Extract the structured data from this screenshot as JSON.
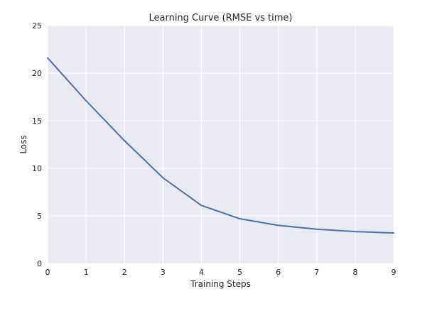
{
  "chart_data": {
    "type": "line",
    "title": "Learning Curve (RMSE vs time)",
    "xlabel": "Training Steps",
    "ylabel": "Loss",
    "x": [
      0,
      1,
      2,
      3,
      4,
      5,
      6,
      7,
      8,
      9
    ],
    "series": [
      {
        "values": [
          21.6,
          17.1,
          12.9,
          9.0,
          6.1,
          4.7,
          4.0,
          3.6,
          3.35,
          3.2
        ]
      }
    ],
    "xlim": [
      0,
      9
    ],
    "ylim": [
      0,
      25
    ],
    "xticks": [
      0,
      1,
      2,
      3,
      4,
      5,
      6,
      7,
      8,
      9
    ],
    "yticks": [
      0,
      5,
      10,
      15,
      20,
      25
    ],
    "grid": true,
    "legend": "none",
    "colors": {
      "plot_background": "#EAEAF2",
      "grid": "#FFFFFF",
      "line": "#4C72B0"
    }
  }
}
